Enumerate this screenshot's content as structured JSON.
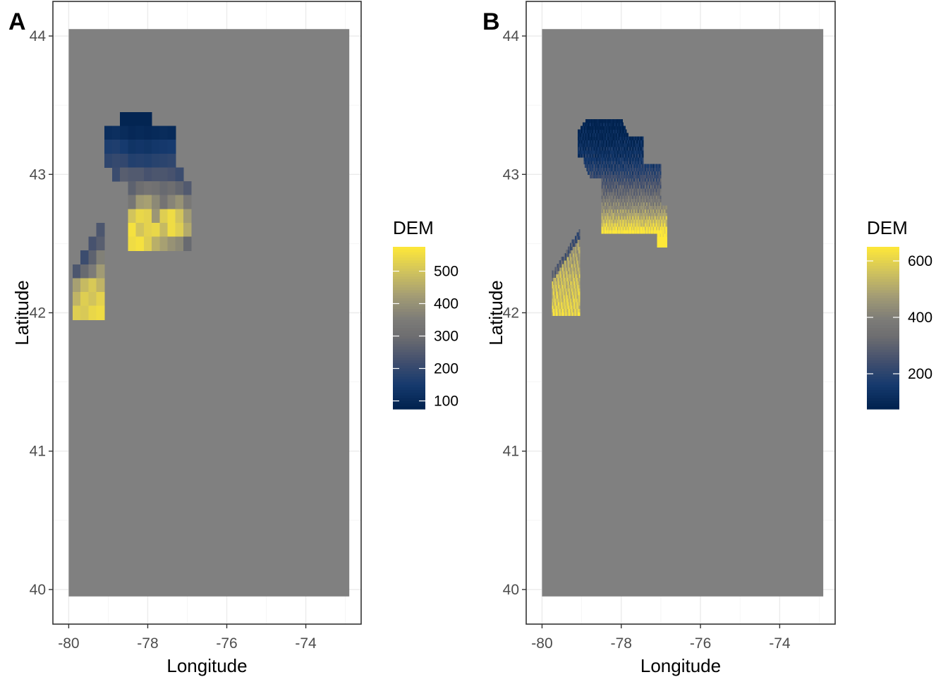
{
  "chart_data": [
    {
      "panel": "A",
      "type": "heatmap",
      "xlabel": "Longitude",
      "ylabel": "Latitude",
      "xticks": [
        -80,
        -78,
        -76,
        -74
      ],
      "yticks": [
        40,
        41,
        42,
        43,
        44
      ],
      "xlim": [
        -80.4,
        -72.6
      ],
      "ylim": [
        39.75,
        44.25
      ],
      "extent": {
        "lon": [
          -80.0,
          -72.9
        ],
        "lat": [
          39.95,
          44.05
        ]
      },
      "background_color": "#808080",
      "grid": true,
      "legend": {
        "title": "DEM",
        "position": "right",
        "min": 75,
        "max": 575,
        "ticks": [
          100,
          200,
          300,
          400,
          500
        ]
      },
      "colormap": "cividis",
      "cell_size_deg": [
        0.2,
        0.1
      ],
      "raster": [
        {
          "row": [
            43.35,
            43.45
          ],
          "lon": [
            -78.7,
            -77.9
          ],
          "v": [
            85,
            85,
            85,
            85
          ]
        },
        {
          "row": [
            43.25,
            43.35
          ],
          "lon": [
            -79.1,
            -77.3
          ],
          "v": [
            110,
            115,
            105,
            95,
            100,
            95,
            100,
            105,
            100
          ]
        },
        {
          "row": [
            43.15,
            43.25
          ],
          "lon": [
            -79.1,
            -77.3
          ],
          "v": [
            160,
            165,
            150,
            130,
            135,
            130,
            140,
            145,
            150
          ]
        },
        {
          "row": [
            43.05,
            43.15
          ],
          "lon": [
            -79.1,
            -77.3
          ],
          "v": [
            190,
            200,
            195,
            170,
            175,
            170,
            180,
            185,
            190
          ]
        },
        {
          "row": [
            42.95,
            43.05
          ],
          "lon": [
            -78.9,
            -77.0
          ],
          "v": [
            210,
            260,
            250,
            250,
            230,
            240,
            240,
            230,
            210
          ]
        },
        {
          "row": [
            42.85,
            42.95
          ],
          "lon": [
            -78.5,
            -77.0
          ],
          "v": [
            270,
            300,
            320,
            310,
            290,
            300,
            280,
            250
          ]
        },
        {
          "row": [
            42.75,
            42.85
          ],
          "lon": [
            -78.5,
            -76.9
          ],
          "v": [
            330,
            420,
            430,
            380,
            320,
            370,
            400,
            340
          ]
        },
        {
          "row": [
            42.65,
            42.75
          ],
          "lon": [
            -78.5,
            -76.9
          ],
          "v": [
            500,
            540,
            530,
            410,
            520,
            550,
            500,
            420
          ]
        },
        {
          "row": [
            42.55,
            42.65
          ],
          "lon": [
            -78.5,
            -76.9
          ],
          "v": [
            560,
            500,
            530,
            540,
            480,
            550,
            520,
            450
          ]
        },
        {
          "row": [
            42.45,
            42.55
          ],
          "lon": [
            -78.5,
            -76.9
          ],
          "v": [
            550,
            560,
            520,
            460,
            430,
            400,
            380,
            290
          ]
        },
        {
          "row": [
            42.55,
            42.65
          ],
          "lon": [
            -79.3,
            -79.1
          ],
          "v": [
            240
          ]
        },
        {
          "row": [
            42.45,
            42.55
          ],
          "lon": [
            -79.5,
            -79.1
          ],
          "v": [
            230,
            260
          ]
        },
        {
          "row": [
            42.35,
            42.45
          ],
          "lon": [
            -79.7,
            -79.1
          ],
          "v": [
            210,
            270,
            360
          ]
        },
        {
          "row": [
            42.25,
            42.35
          ],
          "lon": [
            -79.9,
            -79.1
          ],
          "v": [
            240,
            290,
            350,
            420
          ]
        },
        {
          "row": [
            42.15,
            42.25
          ],
          "lon": [
            -79.9,
            -79.1
          ],
          "v": [
            430,
            480,
            510,
            470
          ]
        },
        {
          "row": [
            42.05,
            42.15
          ],
          "lon": [
            -79.9,
            -79.1
          ],
          "v": [
            470,
            520,
            500,
            530
          ]
        },
        {
          "row": [
            41.95,
            42.05
          ],
          "lon": [
            -79.9,
            -79.1
          ],
          "v": [
            520,
            510,
            540,
            550
          ]
        }
      ]
    },
    {
      "panel": "B",
      "type": "heatmap",
      "xlabel": "Longitude",
      "ylabel": "Latitude",
      "xticks": [
        -80,
        -78,
        -76,
        -74
      ],
      "yticks": [
        40,
        41,
        42,
        43,
        44
      ],
      "xlim": [
        -80.4,
        -72.6
      ],
      "ylim": [
        39.75,
        44.25
      ],
      "extent": {
        "lon": [
          -80.0,
          -72.9
        ],
        "lat": [
          39.95,
          44.05
        ]
      },
      "background_color": "#808080",
      "grid": true,
      "legend": {
        "title": "DEM",
        "position": "right",
        "min": 75,
        "max": 650,
        "ticks": [
          200,
          400,
          600
        ]
      },
      "colormap": "cividis",
      "raster_resolution": "fine (~0.01 deg)",
      "regions": [
        {
          "name": "northern block",
          "lon": [
            -79.1,
            -76.85
          ],
          "lat": [
            42.45,
            43.38
          ],
          "elevation_range": [
            80,
            650
          ],
          "trend": "low in north near 43.3, high in south near 42.55"
        },
        {
          "name": "southwest block",
          "lon": [
            -79.75,
            -79.05
          ],
          "lat": [
            41.98,
            42.58
          ],
          "elevation_range": [
            350,
            640
          ],
          "trend": "mostly high"
        }
      ]
    }
  ]
}
